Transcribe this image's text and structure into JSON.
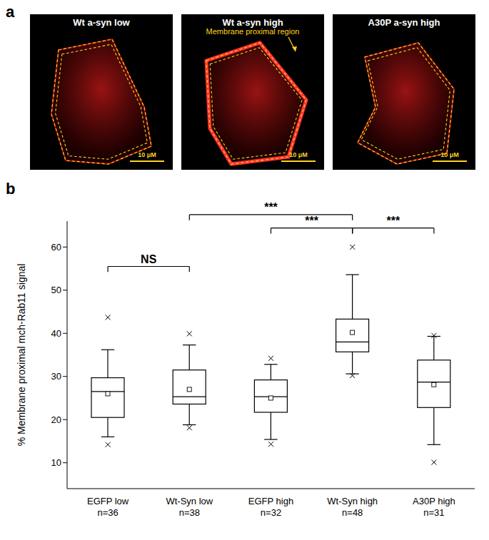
{
  "panels": {
    "a": {
      "label": "a",
      "images": [
        {
          "title": "Wt a-syn low",
          "scale_bar": "10 μM"
        },
        {
          "title": "Wt a-syn high",
          "scale_bar": "10 μM",
          "annotation": "Membrane proximal region"
        },
        {
          "title": "A30P a-syn high",
          "scale_bar": "10 μM"
        }
      ]
    },
    "b": {
      "label": "b"
    }
  },
  "chart_data": {
    "type": "box",
    "y_label": "% Membrane proximal mch-Rab11 signal",
    "categories": [
      "EGFP low\nn=36",
      "Wt-Syn low\nn=38",
      "EGFP high\nn=32",
      "Wt-Syn high\nn=48",
      "A30P high\nn=31"
    ],
    "whisker_low": [
      16,
      18.8,
      15.4,
      30.6,
      14.2
    ],
    "q1": [
      20.5,
      23.6,
      21.7,
      35.7,
      22.8
    ],
    "median": [
      26.5,
      25.3,
      25.3,
      38,
      28.7
    ],
    "q3": [
      29.7,
      31.5,
      29.2,
      43.3,
      33.8
    ],
    "whisker_high": [
      36.2,
      37.3,
      32.8,
      53.6,
      39.3
    ],
    "mean": [
      26,
      27,
      25,
      40.2,
      28.1
    ],
    "min": [
      14.2,
      18.1,
      14.3,
      30.2,
      10.1
    ],
    "max": [
      43.7,
      39.9,
      34.2,
      60,
      39.5
    ],
    "ylim": [
      4,
      66
    ],
    "yticks": [
      10,
      20,
      30,
      40,
      50,
      60
    ],
    "significance": [
      {
        "from": 0,
        "to": 1,
        "label": "NS"
      },
      {
        "from": 1,
        "to": 3,
        "label": "***"
      },
      {
        "from": 2,
        "to": 3,
        "label": "***"
      },
      {
        "from": 3,
        "to": 4,
        "label": "***"
      }
    ]
  }
}
